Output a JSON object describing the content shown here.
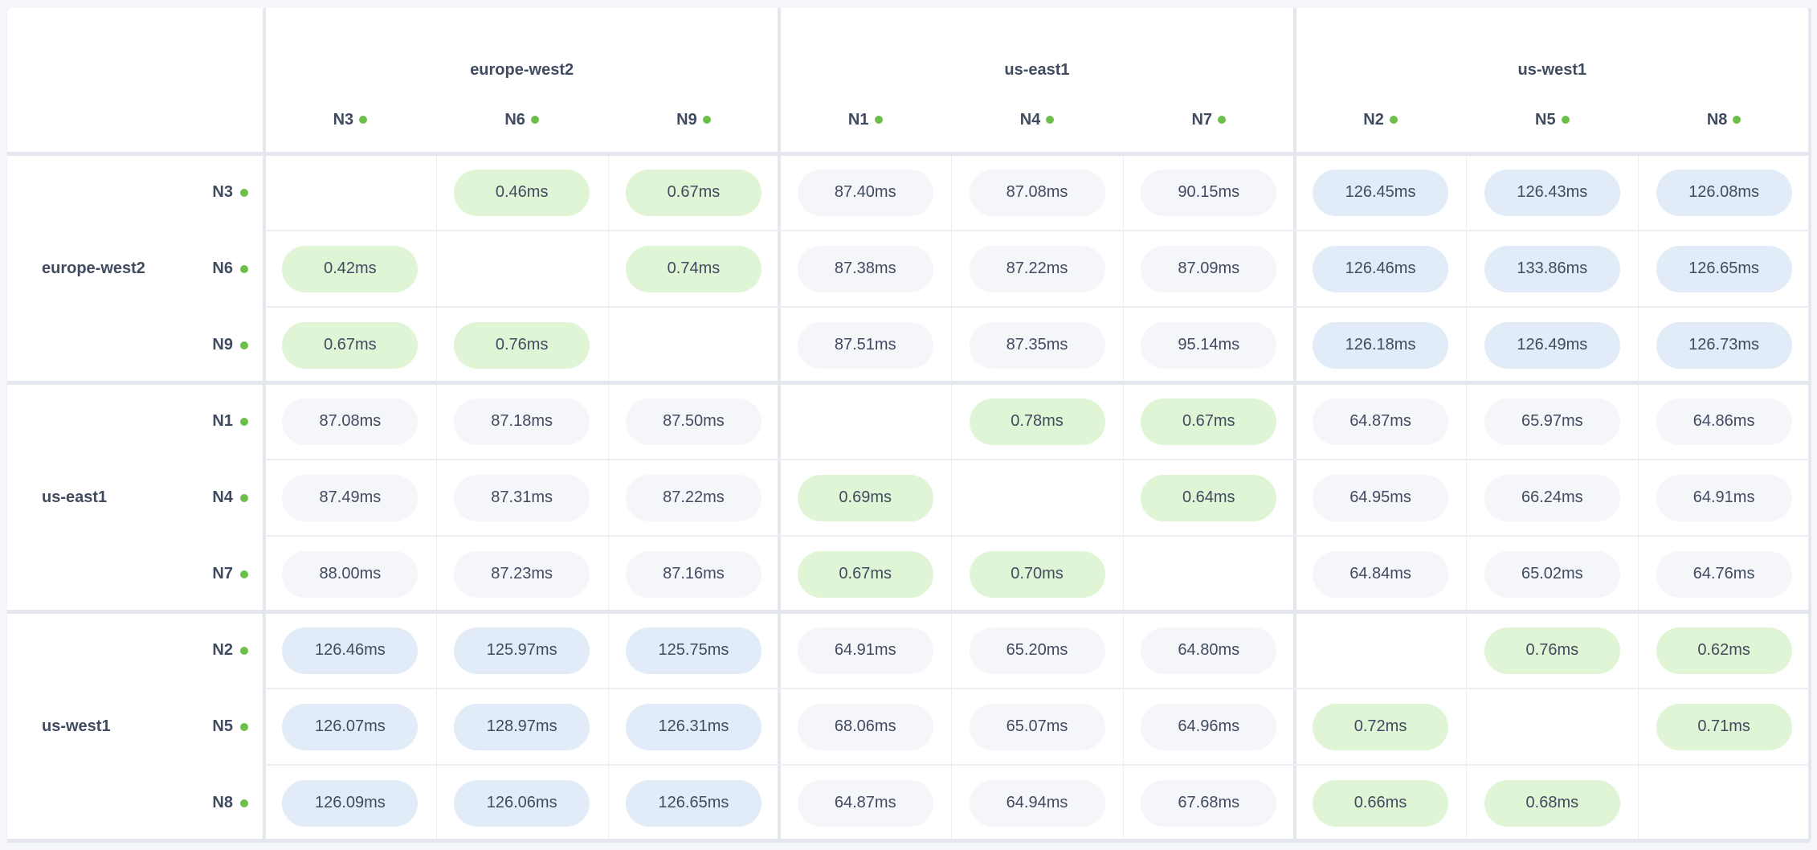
{
  "colors": {
    "status_dot": "#6cc04a",
    "same_region": "#dff5d6",
    "europe_west2_us_west1": "#e2ecf8",
    "other_region": "#f4f6fa",
    "text": "#414b5f"
  },
  "regions": [
    {
      "name": "europe-west2",
      "nodes": [
        "N3",
        "N6",
        "N9"
      ]
    },
    {
      "name": "us-east1",
      "nodes": [
        "N1",
        "N4",
        "N7"
      ]
    },
    {
      "name": "us-west1",
      "nodes": [
        "N2",
        "N5",
        "N8"
      ]
    }
  ],
  "node_status": "live",
  "latency_matrix": [
    [
      null,
      "0.46ms",
      "0.67ms",
      "87.40ms",
      "87.08ms",
      "90.15ms",
      "126.45ms",
      "126.43ms",
      "126.08ms"
    ],
    [
      "0.42ms",
      null,
      "0.74ms",
      "87.38ms",
      "87.22ms",
      "87.09ms",
      "126.46ms",
      "133.86ms",
      "126.65ms"
    ],
    [
      "0.67ms",
      "0.76ms",
      null,
      "87.51ms",
      "87.35ms",
      "95.14ms",
      "126.18ms",
      "126.49ms",
      "126.73ms"
    ],
    [
      "87.08ms",
      "87.18ms",
      "87.50ms",
      null,
      "0.78ms",
      "0.67ms",
      "64.87ms",
      "65.97ms",
      "64.86ms"
    ],
    [
      "87.49ms",
      "87.31ms",
      "87.22ms",
      "0.69ms",
      null,
      "0.64ms",
      "64.95ms",
      "66.24ms",
      "64.91ms"
    ],
    [
      "88.00ms",
      "87.23ms",
      "87.16ms",
      "0.67ms",
      "0.70ms",
      null,
      "64.84ms",
      "65.02ms",
      "64.76ms"
    ],
    [
      "126.46ms",
      "125.97ms",
      "125.75ms",
      "64.91ms",
      "65.20ms",
      "64.80ms",
      null,
      "0.76ms",
      "0.62ms"
    ],
    [
      "126.07ms",
      "128.97ms",
      "126.31ms",
      "68.06ms",
      "65.07ms",
      "64.96ms",
      "0.72ms",
      null,
      "0.71ms"
    ],
    [
      "126.09ms",
      "126.06ms",
      "126.65ms",
      "64.87ms",
      "64.94ms",
      "67.68ms",
      "0.66ms",
      "0.68ms",
      null
    ]
  ]
}
